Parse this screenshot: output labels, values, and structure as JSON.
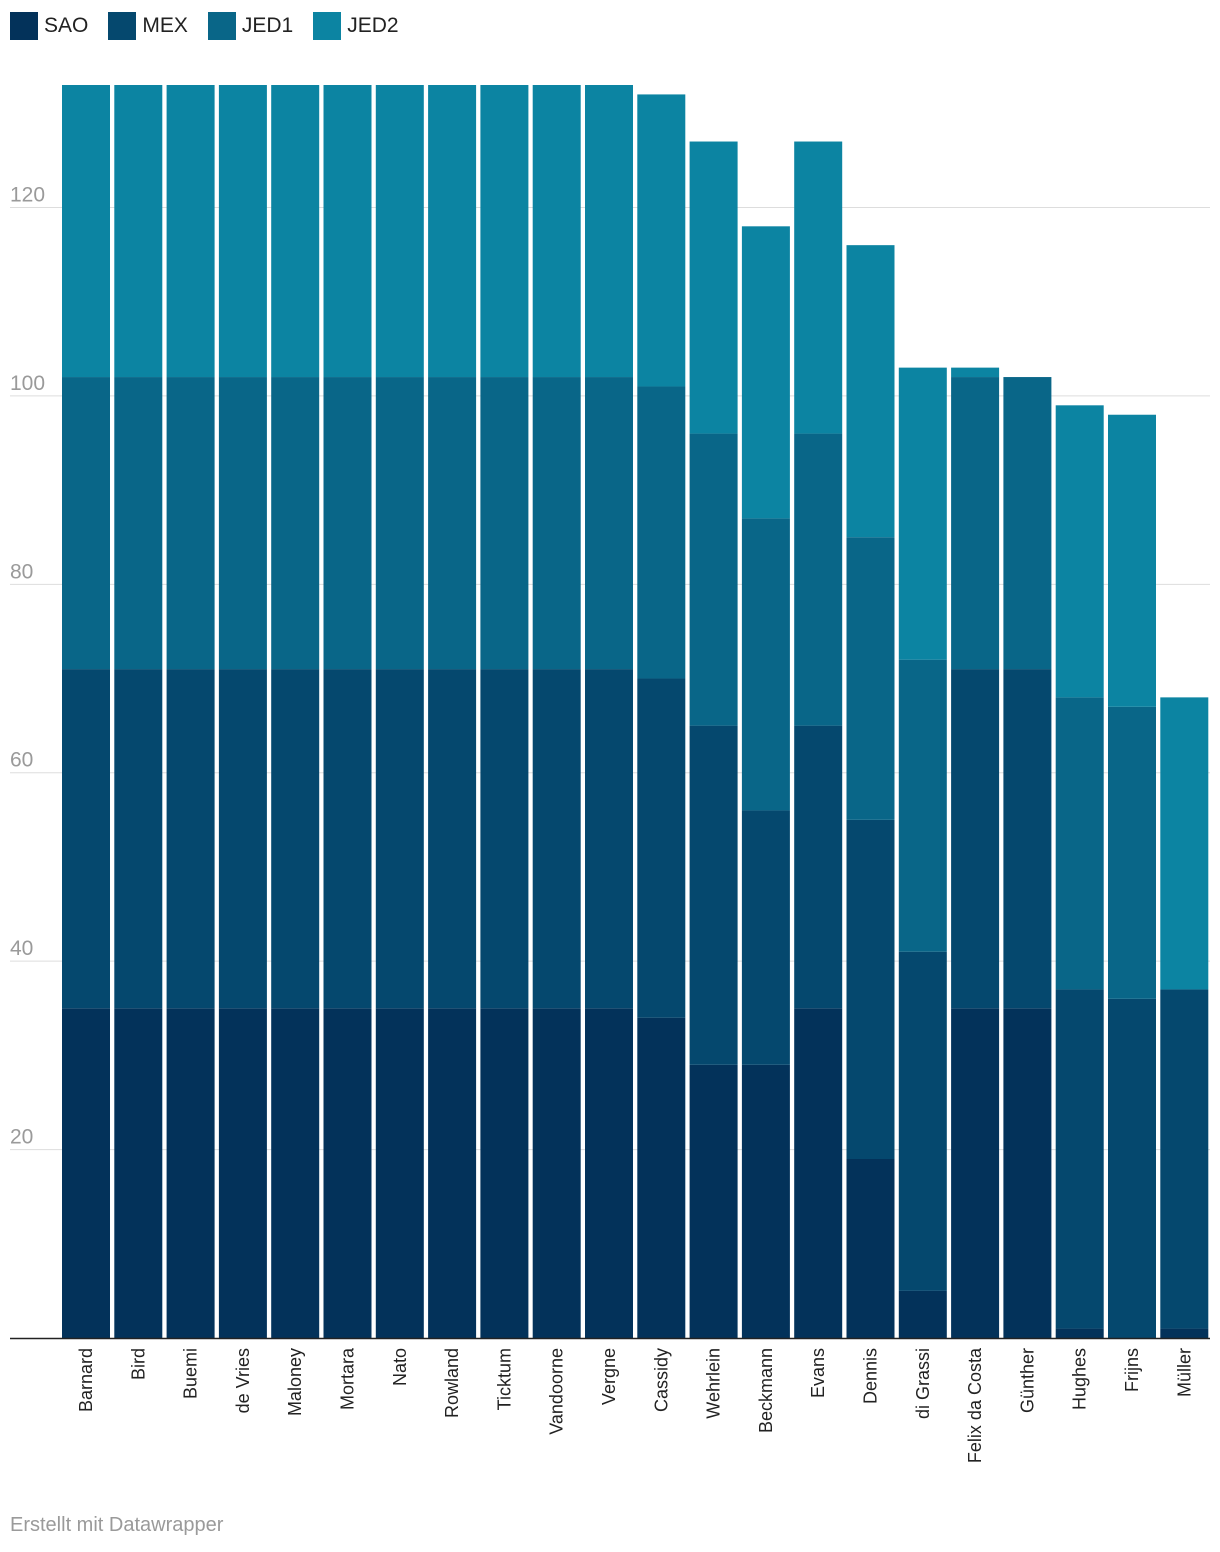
{
  "chart_data": {
    "type": "bar",
    "stacked": true,
    "categories": [
      "Barnard",
      "Bird",
      "Buemi",
      "de Vries",
      "Maloney",
      "Mortara",
      "Nato",
      "Rowland",
      "Ticktum",
      "Vandoorne",
      "Vergne",
      "Cassidy",
      "Wehrlein",
      "Beckmann",
      "Evans",
      "Dennis",
      "di Grassi",
      "Felix da Costa",
      "Günther",
      "Hughes",
      "Frijns",
      "Müller"
    ],
    "series": [
      {
        "name": "SAO",
        "color": "#03325a",
        "values": [
          35,
          35,
          35,
          35,
          35,
          35,
          35,
          35,
          35,
          35,
          35,
          34,
          29,
          29,
          35,
          19,
          5,
          35,
          35,
          1,
          0,
          1
        ]
      },
      {
        "name": "MEX",
        "color": "#05486e",
        "values": [
          36,
          36,
          36,
          36,
          36,
          36,
          36,
          36,
          36,
          36,
          36,
          36,
          36,
          27,
          30,
          36,
          36,
          36,
          36,
          36,
          36,
          36
        ]
      },
      {
        "name": "JED1",
        "color": "#096688",
        "values": [
          31,
          31,
          31,
          31,
          31,
          31,
          31,
          31,
          31,
          31,
          31,
          31,
          31,
          31,
          31,
          30,
          31,
          31,
          31,
          31,
          31,
          0
        ]
      },
      {
        "name": "JED2",
        "color": "#0c84a2",
        "values": [
          31,
          31,
          31,
          31,
          31,
          31,
          31,
          31,
          31,
          31,
          31,
          31,
          31,
          31,
          31,
          31,
          31,
          1,
          0,
          31,
          31,
          31
        ]
      }
    ],
    "yticks": [
      20,
      40,
      60,
      80,
      100,
      120
    ],
    "ylim": [
      0,
      133
    ],
    "grid": true,
    "legend": "top-left"
  },
  "footer": "Erstellt mit Datawrapper"
}
